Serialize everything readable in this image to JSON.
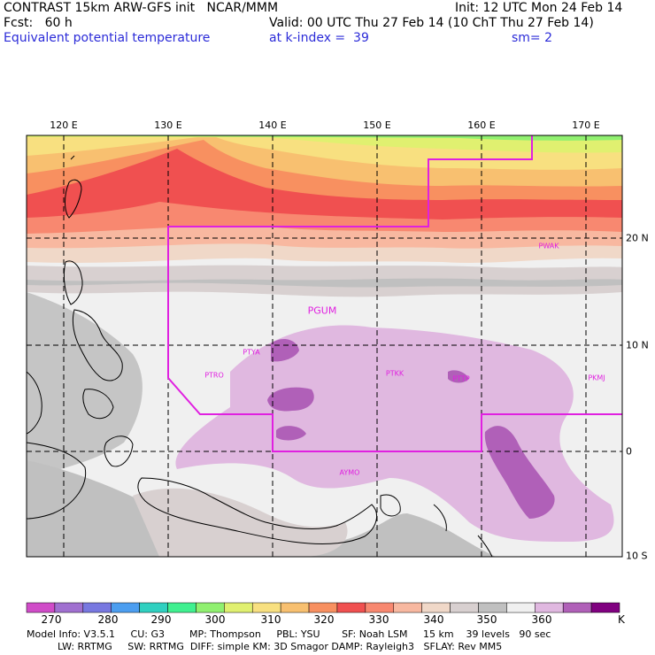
{
  "header": {
    "line1_left": "CONTRAST 15km ARW-GFS init   NCAR/MMM",
    "line1_right": "Init: 12 UTC Mon 24 Feb 14",
    "line2_left": "Fcst:   60 h",
    "line2_right": "Valid: 00 UTC Thu 27 Feb 14 (10 ChT Thu 27 Feb 14)",
    "line3_left": "Equivalent potential temperature",
    "line3_mid": "at k-index =  39",
    "line3_right": "sm= 2"
  },
  "map": {
    "lon_labels": [
      "120 E",
      "130 E",
      "140 E",
      "150 E",
      "160 E",
      "170 E"
    ],
    "lat_labels": [
      "20 N",
      "10 N",
      "0",
      "10 S"
    ],
    "stations": [
      {
        "id": "PGUM",
        "big": true
      },
      {
        "id": "PTYA",
        "big": false
      },
      {
        "id": "PTRO",
        "big": false
      },
      {
        "id": "PTKK",
        "big": false
      },
      {
        "id": "PTTP",
        "big": false
      },
      {
        "id": "PKMJ",
        "big": false
      },
      {
        "id": "PWAK",
        "big": false
      },
      {
        "id": "AYMO",
        "big": false
      }
    ]
  },
  "colorbar": {
    "colors": [
      "#d04cc8",
      "#a070d0",
      "#7878e0",
      "#4c9ef0",
      "#30d0c0",
      "#40f090",
      "#90f070",
      "#e0f070",
      "#f8e080",
      "#f8c070",
      "#f89060",
      "#f05050",
      "#f88870",
      "#f8b8a0",
      "#f0d8c8",
      "#d8d0d0",
      "#c0c0c0",
      "#f0f0f0",
      "#e0b8e0",
      "#b060b8",
      "#800080"
    ],
    "tick_labels": [
      "270",
      "280",
      "290",
      "300",
      "310",
      "320",
      "330",
      "340",
      "350",
      "360"
    ],
    "unit": "K"
  },
  "footer": {
    "line1": "Model Info: V3.5.1     CU: G3        MP: Thompson     PBL: YSU       SF: Noah LSM     15 km    39 levels   90 sec",
    "line2": "          LW: RRTMG     SW: RRTMG  DIFF: simple KM: 3D Smagor DAMP: Rayleigh3   SFLAY: Rev MM5"
  }
}
